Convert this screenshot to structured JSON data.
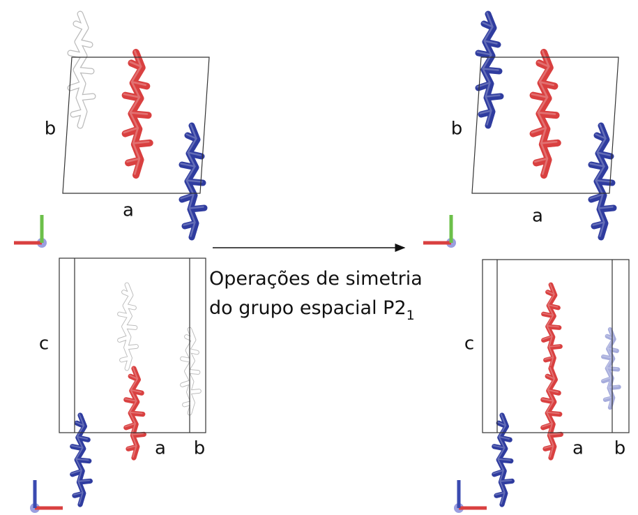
{
  "panels": [
    {
      "axis_labels": [
        "b",
        "a"
      ]
    },
    {
      "axis_labels": [
        "b",
        "a"
      ]
    },
    {
      "axis_labels": [
        "c",
        "a",
        "b"
      ]
    },
    {
      "axis_labels": [
        "c",
        "a",
        "b"
      ]
    }
  ],
  "caption": {
    "line1": "Operações de simetria",
    "line2": "do grupo espacial P2",
    "subscript": "1"
  }
}
